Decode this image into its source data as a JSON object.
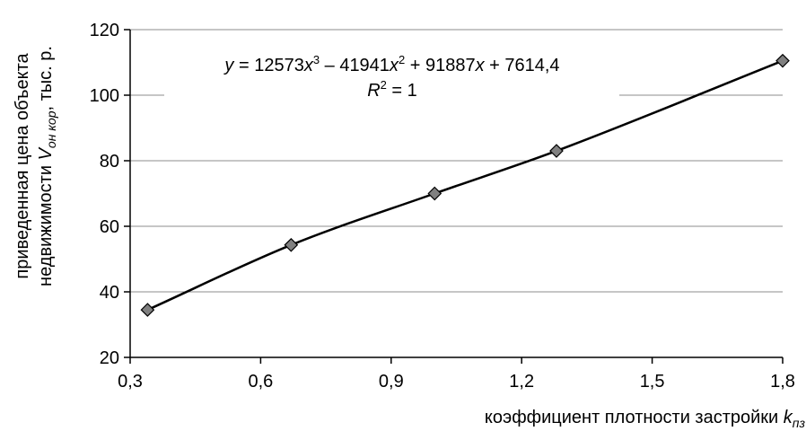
{
  "chart_data": {
    "type": "scatter",
    "title": "",
    "xlabel": {
      "text": "коэффициент плотности застройки ",
      "var": "k",
      "sub": "пз"
    },
    "ylabel": {
      "line1": "приведенная цена объекта",
      "line2_text": "недвижимости  ",
      "line2_var": "V",
      "line2_sub": "он кор",
      "line2_unit": ", тыс. р."
    },
    "xlim": [
      0.3,
      1.8
    ],
    "ylim": [
      20,
      120
    ],
    "x_ticks": [
      "0,3",
      "0,6",
      "0,9",
      "1,2",
      "1,5",
      "1,8"
    ],
    "y_ticks": [
      "20",
      "40",
      "60",
      "80",
      "100",
      "120"
    ],
    "grid": "horizontal",
    "series": [
      {
        "points": [
          {
            "x": 0.34,
            "y": 34.5
          },
          {
            "x": 0.67,
            "y": 54.3
          },
          {
            "x": 1.0,
            "y": 70.0
          },
          {
            "x": 1.28,
            "y": 83.0
          },
          {
            "x": 1.8,
            "y": 110.5
          }
        ],
        "marker_color": "#808080"
      }
    ],
    "trendline": {
      "type": "polynomial",
      "coefficients": [
        12573,
        -41941,
        91887,
        7614.4
      ],
      "equation": {
        "y": "y",
        "eq_a": " = 12573",
        "x1": "x",
        "pow1": "3",
        "eq_b": " – 41941",
        "x2": "x",
        "pow2": "2",
        "eq_c": " + 91887",
        "x3": "x",
        "eq_d": " + 7614,4"
      },
      "r2": {
        "r": "R",
        "pow": "2",
        "value": " = 1"
      }
    }
  }
}
